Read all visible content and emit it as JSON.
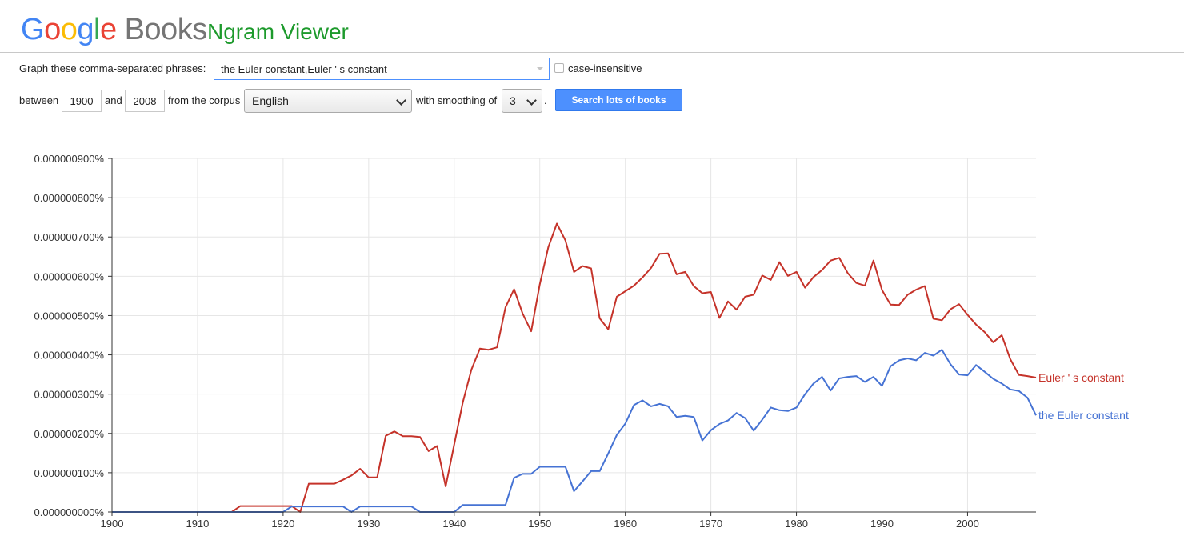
{
  "header": {
    "logo_letters": [
      "G",
      "o",
      "o",
      "g",
      "l",
      "e"
    ],
    "logo_books": "Books",
    "app_title": "Ngram Viewer"
  },
  "form": {
    "phrase_label": "Graph these comma-separated phrases:",
    "phrase_value": "the Euler constant,Euler ' s constant",
    "case_insensitive_label": "case-insensitive",
    "between_label": "between",
    "start_year": "1900",
    "and_label": "and",
    "end_year": "2008",
    "corpus_label": "from the corpus",
    "corpus_value": "English",
    "smoothing_label": "with smoothing of",
    "smoothing_value": "3",
    "period": ".",
    "search_button": "Search lots of books"
  },
  "colors": {
    "series_red": "#c5332a",
    "series_blue": "#4673d4",
    "grid": "#e6e6e6",
    "axis": "#333333"
  },
  "chart_data": {
    "type": "line",
    "xlim": [
      1900,
      2008
    ],
    "ylim": [
      0,
      9e-07
    ],
    "x_ticks": [
      1900,
      1910,
      1920,
      1930,
      1940,
      1950,
      1960,
      1970,
      1980,
      1990,
      2000
    ],
    "y_ticks": [
      0,
      1e-07,
      2e-07,
      3e-07,
      4e-07,
      5e-07,
      6e-07,
      7e-07,
      8e-07,
      9e-07
    ],
    "y_tick_labels": [
      "0.000000000%",
      "0.000000100%",
      "0.000000200%",
      "0.000000300%",
      "0.000000400%",
      "0.000000500%",
      "0.000000600%",
      "0.000000700%",
      "0.000000800%",
      "0.000000900%"
    ],
    "grid": true,
    "legend": "line-end labels",
    "series": [
      {
        "name": "Euler ' s constant",
        "color": "#c5332a",
        "points": [
          [
            1900,
            0
          ],
          [
            1914,
            0
          ],
          [
            1915,
            1.5e-08
          ],
          [
            1921,
            1.5e-08
          ],
          [
            1922,
            0
          ],
          [
            1923,
            7.2e-08
          ],
          [
            1926,
            7.2e-08
          ],
          [
            1927,
            8.2e-08
          ],
          [
            1928,
            9.3e-08
          ],
          [
            1929,
            1.1e-07
          ],
          [
            1930,
            8.8e-08
          ],
          [
            1931,
            8.8e-08
          ],
          [
            1932,
            1.94e-07
          ],
          [
            1933,
            2.05e-07
          ],
          [
            1934,
            1.93e-07
          ],
          [
            1935,
            1.93e-07
          ],
          [
            1936,
            1.91e-07
          ],
          [
            1937,
            1.55e-07
          ],
          [
            1938,
            1.68e-07
          ],
          [
            1939,
            6.5e-08
          ],
          [
            1940,
            1.72e-07
          ],
          [
            1941,
            2.79e-07
          ],
          [
            1942,
            3.62e-07
          ],
          [
            1943,
            4.16e-07
          ],
          [
            1944,
            4.13e-07
          ],
          [
            1945,
            4.19e-07
          ],
          [
            1946,
            5.21e-07
          ],
          [
            1947,
            5.67e-07
          ],
          [
            1948,
            5.05e-07
          ],
          [
            1949,
            4.6e-07
          ],
          [
            1950,
            5.79e-07
          ],
          [
            1951,
            6.74e-07
          ],
          [
            1952,
            7.34e-07
          ],
          [
            1953,
            6.91e-07
          ],
          [
            1954,
            6.11e-07
          ],
          [
            1955,
            6.26e-07
          ],
          [
            1956,
            6.2e-07
          ],
          [
            1957,
            4.93e-07
          ],
          [
            1958,
            4.65e-07
          ],
          [
            1959,
            5.48e-07
          ],
          [
            1960,
            5.62e-07
          ],
          [
            1961,
            5.76e-07
          ],
          [
            1962,
            5.97e-07
          ],
          [
            1963,
            6.21e-07
          ],
          [
            1964,
            6.57e-07
          ],
          [
            1965,
            6.58e-07
          ],
          [
            1966,
            6.05e-07
          ],
          [
            1967,
            6.11e-07
          ],
          [
            1968,
            5.75e-07
          ],
          [
            1969,
            5.57e-07
          ],
          [
            1970,
            5.6e-07
          ],
          [
            1971,
            4.94e-07
          ],
          [
            1972,
            5.36e-07
          ],
          [
            1973,
            5.15e-07
          ],
          [
            1974,
            5.48e-07
          ],
          [
            1975,
            5.53e-07
          ],
          [
            1976,
            6.02e-07
          ],
          [
            1977,
            5.91e-07
          ],
          [
            1978,
            6.36e-07
          ],
          [
            1979,
            6.01e-07
          ],
          [
            1980,
            6.11e-07
          ],
          [
            1981,
            5.71e-07
          ],
          [
            1982,
            5.98e-07
          ],
          [
            1983,
            6.16e-07
          ],
          [
            1984,
            6.4e-07
          ],
          [
            1985,
            6.47e-07
          ],
          [
            1986,
            6.08e-07
          ],
          [
            1987,
            5.83e-07
          ],
          [
            1988,
            5.76e-07
          ],
          [
            1989,
            6.4e-07
          ],
          [
            1990,
            5.65e-07
          ],
          [
            1991,
            5.28e-07
          ],
          [
            1992,
            5.27e-07
          ],
          [
            1993,
            5.53e-07
          ],
          [
            1994,
            5.66e-07
          ],
          [
            1995,
            5.75e-07
          ],
          [
            1996,
            4.92e-07
          ],
          [
            1997,
            4.88e-07
          ],
          [
            1998,
            5.16e-07
          ],
          [
            1999,
            5.29e-07
          ],
          [
            2000,
            5.02e-07
          ],
          [
            2001,
            4.77e-07
          ],
          [
            2002,
            4.58e-07
          ],
          [
            2003,
            4.32e-07
          ],
          [
            2004,
            4.5e-07
          ],
          [
            2005,
            3.89e-07
          ],
          [
            2006,
            3.49e-07
          ],
          [
            2007,
            3.46e-07
          ],
          [
            2008,
            3.42e-07
          ]
        ]
      },
      {
        "name": "the Euler constant",
        "color": "#4673d4",
        "points": [
          [
            1900,
            0
          ],
          [
            1920,
            0
          ],
          [
            1921,
            1.4e-08
          ],
          [
            1927,
            1.4e-08
          ],
          [
            1928,
            0
          ],
          [
            1929,
            1.4e-08
          ],
          [
            1935,
            1.4e-08
          ],
          [
            1936,
            0
          ],
          [
            1940,
            0
          ],
          [
            1941,
            1.8e-08
          ],
          [
            1946,
            1.8e-08
          ],
          [
            1947,
            8.7e-08
          ],
          [
            1948,
            9.7e-08
          ],
          [
            1949,
            9.7e-08
          ],
          [
            1950,
            1.15e-07
          ],
          [
            1953,
            1.15e-07
          ],
          [
            1954,
            5.3e-08
          ],
          [
            1955,
            7.8e-08
          ],
          [
            1956,
            1.04e-07
          ],
          [
            1957,
            1.04e-07
          ],
          [
            1958,
            1.49e-07
          ],
          [
            1959,
            1.96e-07
          ],
          [
            1960,
            2.25e-07
          ],
          [
            1961,
            2.72e-07
          ],
          [
            1962,
            2.84e-07
          ],
          [
            1963,
            2.69e-07
          ],
          [
            1964,
            2.75e-07
          ],
          [
            1965,
            2.69e-07
          ],
          [
            1966,
            2.42e-07
          ],
          [
            1967,
            2.45e-07
          ],
          [
            1968,
            2.42e-07
          ],
          [
            1969,
            1.82e-07
          ],
          [
            1970,
            2.08e-07
          ],
          [
            1971,
            2.24e-07
          ],
          [
            1972,
            2.33e-07
          ],
          [
            1973,
            2.52e-07
          ],
          [
            1974,
            2.39e-07
          ],
          [
            1975,
            2.07e-07
          ],
          [
            1976,
            2.35e-07
          ],
          [
            1977,
            2.66e-07
          ],
          [
            1978,
            2.59e-07
          ],
          [
            1979,
            2.57e-07
          ],
          [
            1980,
            2.66e-07
          ],
          [
            1981,
            3e-07
          ],
          [
            1982,
            3.27e-07
          ],
          [
            1983,
            3.44e-07
          ],
          [
            1984,
            3.09e-07
          ],
          [
            1985,
            3.4e-07
          ],
          [
            1986,
            3.44e-07
          ],
          [
            1987,
            3.46e-07
          ],
          [
            1988,
            3.31e-07
          ],
          [
            1989,
            3.44e-07
          ],
          [
            1990,
            3.21e-07
          ],
          [
            1991,
            3.71e-07
          ],
          [
            1992,
            3.86e-07
          ],
          [
            1993,
            3.91e-07
          ],
          [
            1994,
            3.86e-07
          ],
          [
            1995,
            4.05e-07
          ],
          [
            1996,
            3.98e-07
          ],
          [
            1997,
            4.13e-07
          ],
          [
            1998,
            3.76e-07
          ],
          [
            1999,
            3.5e-07
          ],
          [
            2000,
            3.48e-07
          ],
          [
            2001,
            3.74e-07
          ],
          [
            2002,
            3.57e-07
          ],
          [
            2003,
            3.39e-07
          ],
          [
            2004,
            3.27e-07
          ],
          [
            2005,
            3.12e-07
          ],
          [
            2006,
            3.08e-07
          ],
          [
            2007,
            2.91e-07
          ],
          [
            2008,
            2.46e-07
          ]
        ]
      }
    ]
  }
}
